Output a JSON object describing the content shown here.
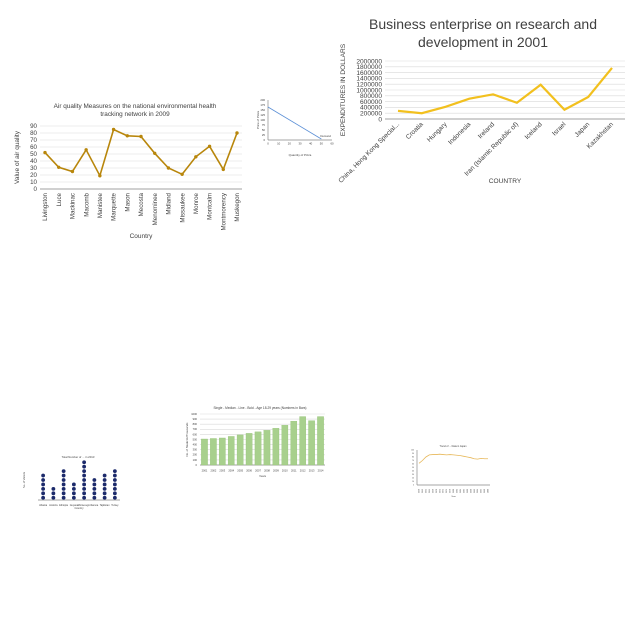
{
  "chart_data": [
    {
      "type": "line",
      "title_lines": [
        "Air quality Measures on the national environmental health",
        "tracking network in 2009"
      ],
      "xlabel": "Country",
      "ylabel": "Value of air quality",
      "ylim": [
        0,
        90
      ],
      "yticks": [
        0,
        10,
        20,
        30,
        40,
        50,
        60,
        70,
        80,
        90
      ],
      "categories": [
        "Livingston",
        "Luce",
        "Mackinac",
        "Macomb",
        "Manistee",
        "Marquette",
        "Mason",
        "Mecosta",
        "Menominee",
        "Midland",
        "Missaukee",
        "Monroe",
        "Montcalm",
        "Montmorency",
        "Muskegon"
      ],
      "values": [
        52,
        31,
        25,
        56,
        19,
        85,
        76,
        75,
        51,
        30,
        21,
        46,
        61,
        28,
        80
      ],
      "color": "#b8860b"
    },
    {
      "type": "line",
      "title_lines": [
        "Business enterprise on research and",
        "development in 2001"
      ],
      "xlabel": "COUNTRY",
      "ylabel": "EXPENDITURES IN DOLLARS",
      "ylim": [
        0,
        2000000
      ],
      "yticks": [
        0,
        200000,
        400000,
        600000,
        800000,
        1000000,
        1200000,
        1400000,
        1600000,
        1800000,
        2000000
      ],
      "categories": [
        "China, Hong Kong Special...",
        "Croatia",
        "Hungary",
        "Indonesia",
        "Ireland",
        "Iran (Islamic Republic of)",
        "Iceland",
        "Israel",
        "Japan",
        "Kazakhstan"
      ],
      "values": [
        280000,
        200000,
        420000,
        700000,
        850000,
        560000,
        1180000,
        320000,
        760000,
        1760000
      ],
      "color": "#f2c01e"
    },
    {
      "type": "line",
      "ylabel": "Price of Pizza",
      "xlabel": "Quantity of Pizza",
      "ylim": [
        0,
        200
      ],
      "yticks": [
        0,
        25,
        50,
        75,
        100,
        125,
        150,
        175,
        200
      ],
      "xlim": [
        0,
        60
      ],
      "xticks": [
        0,
        10,
        20,
        30,
        40,
        50,
        60
      ],
      "x": [
        0,
        50
      ],
      "values": [
        165,
        5
      ],
      "annotation": "Demand",
      "color": "#5b8fd6"
    },
    {
      "type": "bar",
      "title": "Single - Median - Line - Bold - Age 18-29 years (Numbers in Bars)",
      "xlabel": "Years",
      "ylabel": "No. of Students/Thousands",
      "ylim": [
        0,
        1000
      ],
      "yticks": [
        0,
        100,
        200,
        300,
        400,
        500,
        600,
        700,
        800,
        900,
        1000
      ],
      "categories": [
        "2001",
        "2002",
        "2003",
        "2004",
        "2005",
        "2006",
        "2007",
        "2008",
        "2009",
        "2010",
        "2011",
        "2012",
        "2013",
        "2014"
      ],
      "values": [
        510,
        520,
        530,
        560,
        590,
        620,
        650,
        680,
        720,
        780,
        860,
        950,
        870,
        950
      ],
      "color": "#a8d08d"
    },
    {
      "type": "scatter",
      "title": "Total Number of ... in 2013",
      "xlabel": "Country",
      "ylabel": "No. of Visitors",
      "ylim": [
        0,
        9
      ],
      "categories": [
        "Albania",
        "Andorra",
        "Ethiopia",
        "Guyana",
        "Montenegro",
        "Samoa",
        "Tajikistan",
        "Turkey"
      ],
      "values": [
        6,
        3,
        7,
        4,
        9,
        5,
        6,
        7
      ],
      "color": "#1c2a6b"
    },
    {
      "type": "line",
      "title": "Trend of ... Data in Japan",
      "xlabel": "Year",
      "ylim": [
        0,
        100
      ],
      "yticks": [
        0,
        10,
        20,
        30,
        40,
        50,
        60,
        70,
        80,
        90,
        100
      ],
      "categories": [
        "1960",
        "1962",
        "1964",
        "1966",
        "1968",
        "1970",
        "1972",
        "1974",
        "1976",
        "1978",
        "1980",
        "1982",
        "1984",
        "1986",
        "1988",
        "1990",
        "1992",
        "1994",
        "1996",
        "1998",
        "2000"
      ],
      "values": [
        62,
        70,
        80,
        86,
        87,
        87,
        88,
        87,
        86,
        87,
        86,
        85,
        84,
        82,
        80,
        78,
        75,
        74,
        76,
        75,
        75
      ],
      "color": "#e7b85a"
    }
  ]
}
